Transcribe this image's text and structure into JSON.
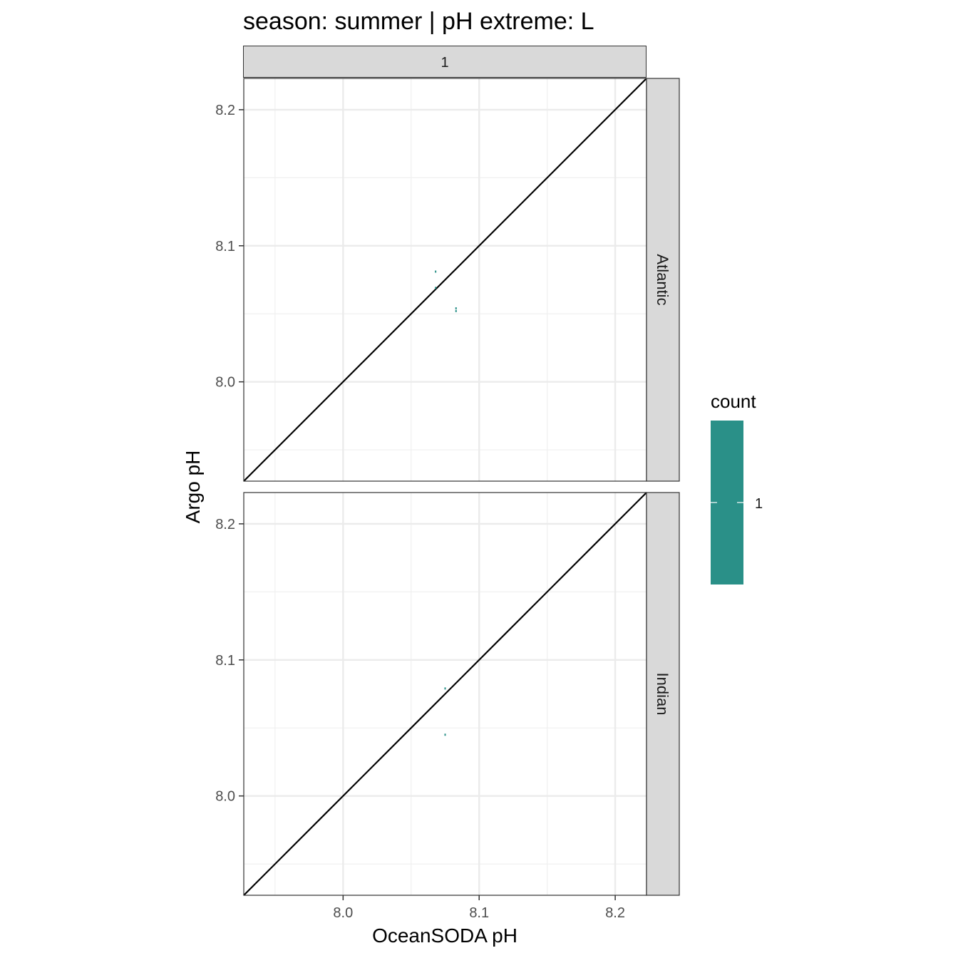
{
  "chart_data": {
    "type": "heatmap",
    "title": "season: summer | pH extreme: L",
    "xlabel": "OceanSODA pH",
    "ylabel": "Argo pH",
    "xlim": [
      7.927,
      8.223
    ],
    "ylim": [
      7.927,
      8.223
    ],
    "x_ticks": [
      "8.0",
      "8.1",
      "8.2"
    ],
    "x_tick_values": [
      8.0,
      8.1,
      8.2
    ],
    "y_ticks": [
      "8.0",
      "8.1",
      "8.2"
    ],
    "y_tick_values": [
      8.0,
      8.1,
      8.2
    ],
    "reference_line": "y = x",
    "grid": true,
    "column_strip": "1",
    "panels": [
      {
        "name": "Atlantic",
        "bins": [
          {
            "x": 8.068,
            "y": 8.081,
            "count": 1
          },
          {
            "x": 8.068,
            "y": 8.069,
            "count": 1
          },
          {
            "x": 8.083,
            "y": 8.054,
            "count": 1
          },
          {
            "x": 8.083,
            "y": 8.052,
            "count": 1
          }
        ]
      },
      {
        "name": "Indian",
        "bins": [
          {
            "x": 8.075,
            "y": 8.079,
            "count": 1
          },
          {
            "x": 8.075,
            "y": 8.045,
            "count": 1
          }
        ]
      }
    ],
    "legend": {
      "title": "count",
      "labels": [
        "1"
      ],
      "values": [
        1
      ],
      "color": "#2a9088",
      "placement": "right"
    }
  }
}
